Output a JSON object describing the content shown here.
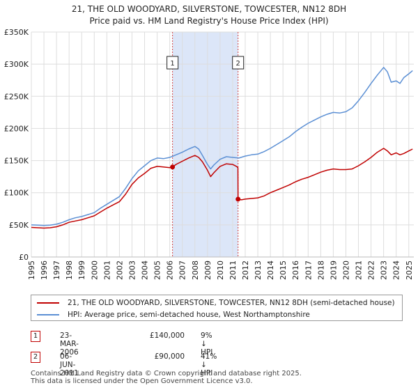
{
  "chart_data": {
    "type": "line",
    "title": "21, THE OLD WOODYARD, SILVERSTONE, TOWCESTER, NN12 8DH",
    "subtitle": "Price paid vs. HM Land Registry's House Price Index (HPI)",
    "xlabel": "",
    "ylabel": "",
    "xlim": [
      1995,
      2025.4
    ],
    "ylim": [
      0,
      350000
    ],
    "grid": true,
    "y_ticks": [
      0,
      50000,
      100000,
      150000,
      200000,
      250000,
      300000,
      350000
    ],
    "y_tick_labels": [
      "£0",
      "£50K",
      "£100K",
      "£150K",
      "£200K",
      "£250K",
      "£300K",
      "£350K"
    ],
    "x_ticks": [
      1995,
      1996,
      1997,
      1998,
      1999,
      2000,
      2001,
      2002,
      2003,
      2004,
      2005,
      2006,
      2007,
      2008,
      2009,
      2010,
      2011,
      2012,
      2013,
      2014,
      2015,
      2016,
      2017,
      2018,
      2019,
      2020,
      2021,
      2022,
      2023,
      2024,
      2025
    ],
    "x_tick_labels": [
      "1995",
      "1996",
      "1997",
      "1998",
      "1999",
      "2000",
      "2001",
      "2002",
      "2003",
      "2004",
      "2005",
      "2006",
      "2007",
      "2008",
      "2009",
      "2010",
      "2011",
      "2012",
      "2013",
      "2014",
      "2015",
      "2016",
      "2017",
      "2018",
      "2019",
      "2020",
      "2021",
      "2022",
      "2023",
      "2024",
      "2025"
    ],
    "shaded_region": {
      "from": 2006.22,
      "to": 2011.43,
      "color": "#dce6f8"
    },
    "series": [
      {
        "name": "21, THE OLD WOODYARD, SILVERSTONE, TOWCESTER, NN12 8DH (semi-detached house)",
        "color": "#c00000",
        "x": [
          1995.0,
          1995.5,
          1996.0,
          1996.5,
          1997.0,
          1997.5,
          1998.0,
          1998.5,
          1999.0,
          1999.5,
          2000.0,
          2000.5,
          2001.0,
          2001.5,
          2002.0,
          2002.5,
          2003.0,
          2003.5,
          2004.0,
          2004.5,
          2005.0,
          2005.5,
          2006.0,
          2006.22,
          2006.5,
          2007.0,
          2007.5,
          2008.0,
          2008.3,
          2008.6,
          2009.0,
          2009.25,
          2009.5,
          2010.0,
          2010.5,
          2011.0,
          2011.3,
          2011.42,
          2011.43,
          2011.7,
          2012.0,
          2012.5,
          2013.0,
          2013.5,
          2014.0,
          2014.5,
          2015.0,
          2015.5,
          2016.0,
          2016.5,
          2017.0,
          2017.5,
          2018.0,
          2018.5,
          2019.0,
          2019.5,
          2020.0,
          2020.5,
          2021.0,
          2021.5,
          2022.0,
          2022.5,
          2023.0,
          2023.3,
          2023.6,
          2024.0,
          2024.3,
          2024.6,
          2025.0,
          2025.3
        ],
        "values": [
          46000,
          45500,
          45000,
          45500,
          47000,
          50000,
          54000,
          56000,
          58000,
          61000,
          64000,
          70000,
          76000,
          81000,
          86000,
          98000,
          113000,
          123000,
          130000,
          138000,
          141000,
          140000,
          139000,
          140000,
          144000,
          149000,
          154000,
          158000,
          155000,
          148000,
          135000,
          125000,
          131000,
          141000,
          145000,
          144000,
          141000,
          139000,
          90000,
          89000,
          90000,
          91000,
          92000,
          95000,
          100000,
          104000,
          108000,
          112000,
          117000,
          121000,
          124000,
          128000,
          132000,
          135000,
          137000,
          136000,
          136000,
          137000,
          142000,
          148000,
          155000,
          163000,
          169000,
          165000,
          159000,
          162000,
          159000,
          161000,
          165000,
          168000
        ]
      },
      {
        "name": "HPI: Average price, semi-detached house, West Northamptonshire",
        "color": "#5b8fd4",
        "x": [
          1995.0,
          1995.5,
          1996.0,
          1996.5,
          1997.0,
          1997.5,
          1998.0,
          1998.5,
          1999.0,
          1999.5,
          2000.0,
          2000.5,
          2001.0,
          2001.5,
          2002.0,
          2002.5,
          2003.0,
          2003.5,
          2004.0,
          2004.5,
          2005.0,
          2005.5,
          2006.0,
          2006.5,
          2007.0,
          2007.5,
          2008.0,
          2008.3,
          2008.6,
          2009.0,
          2009.25,
          2009.5,
          2010.0,
          2010.5,
          2011.0,
          2011.5,
          2012.0,
          2012.5,
          2013.0,
          2013.5,
          2014.0,
          2014.5,
          2015.0,
          2015.5,
          2016.0,
          2016.5,
          2017.0,
          2017.5,
          2018.0,
          2018.5,
          2019.0,
          2019.5,
          2020.0,
          2020.5,
          2021.0,
          2021.5,
          2022.0,
          2022.5,
          2023.0,
          2023.3,
          2023.6,
          2024.0,
          2024.3,
          2024.6,
          2025.0,
          2025.3
        ],
        "values": [
          50000,
          49500,
          49000,
          49500,
          51000,
          54000,
          58000,
          61000,
          63000,
          66000,
          69000,
          76000,
          82000,
          88000,
          94000,
          107000,
          122000,
          134000,
          142000,
          150000,
          154000,
          153000,
          155000,
          159000,
          163000,
          168000,
          172000,
          168000,
          158000,
          144000,
          137000,
          143000,
          152000,
          156000,
          155000,
          154000,
          157000,
          159000,
          160000,
          164000,
          169000,
          175000,
          181000,
          187000,
          195000,
          202000,
          208000,
          213000,
          218000,
          222000,
          225000,
          224000,
          226000,
          232000,
          243000,
          256000,
          270000,
          283000,
          295000,
          288000,
          272000,
          274000,
          270000,
          279000,
          285000,
          290000
        ]
      }
    ],
    "transactions": [
      {
        "id": "1",
        "date": "23-MAR-2006",
        "price": "£140,000",
        "hpi_delta": "9% ↓ HPI",
        "x": 2006.22,
        "value": 140000
      },
      {
        "id": "2",
        "date": "06-JUN-2011",
        "price": "£90,000",
        "hpi_delta": "41% ↓ HPI",
        "x": 2011.43,
        "value": 90000
      }
    ]
  },
  "legend": {
    "entries": [
      {
        "label": "21, THE OLD WOODYARD, SILVERSTONE, TOWCESTER, NN12 8DH (semi-detached house)",
        "color": "#c00000"
      },
      {
        "label": "HPI: Average price, semi-detached house, West Northamptonshire",
        "color": "#5b8fd4"
      }
    ]
  },
  "footer": {
    "line1": "Contains HM Land Registry data © Crown copyright and database right 2025.",
    "line2": "This data is licensed under the Open Government Licence v3.0."
  }
}
